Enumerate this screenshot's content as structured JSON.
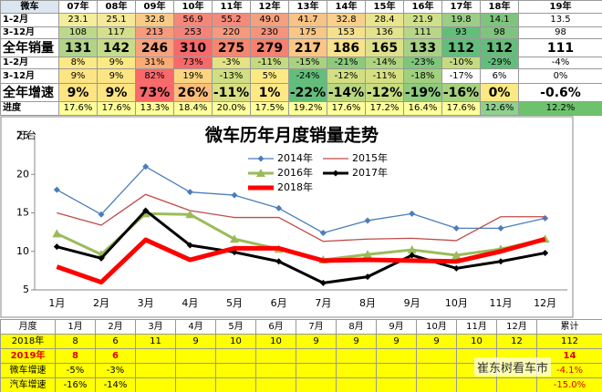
{
  "top_table": {
    "header": [
      "微车",
      "07年",
      "08年",
      "09年",
      "10年",
      "11年",
      "12年",
      "13年",
      "14年",
      "15年",
      "16年",
      "17年",
      "18年",
      "19年"
    ],
    "rows": [
      {
        "label": "1-2月",
        "cells": [
          "23.1",
          "25.1",
          "32.8",
          "56.9",
          "55.2",
          "49.0",
          "41.7",
          "32.8",
          "28.4",
          "21.9",
          "19.8",
          "14.1",
          "13.5"
        ],
        "colors": [
          "#f3ee9c",
          "#f5e999",
          "#f8cb89",
          "#f4877a",
          "#f48a7b",
          "#f5a07e",
          "#f8c386",
          "#f8d08a",
          "#e9e58e",
          "#cfe08a",
          "#9ccd86",
          "#7fc47e",
          "#ffffff"
        ]
      },
      {
        "label": "3-12月",
        "cells": [
          "108",
          "117",
          "213",
          "253",
          "220",
          "230",
          "175",
          "153",
          "136",
          "111",
          "93",
          "98",
          "98"
        ],
        "colors": [
          "#bcd98a",
          "#d3df8c",
          "#f69a7c",
          "#f4837a",
          "#f59a7d",
          "#f5937c",
          "#f8c787",
          "#f4e08d",
          "#e4e28c",
          "#b8d689",
          "#63be7b",
          "#7ec47e",
          "#ffffff"
        ]
      },
      {
        "label": "全年销量",
        "cells": [
          "131",
          "142",
          "246",
          "310",
          "275",
          "279",
          "217",
          "186",
          "165",
          "133",
          "112",
          "112",
          "111"
        ],
        "colors": [
          "#b0d488",
          "#c6dc8a",
          "#f6a27e",
          "#f8696b",
          "#f7866f",
          "#f7806e",
          "#fbc685",
          "#f7e38b",
          "#dde18a",
          "#a8d186",
          "#63be7b",
          "#63be7b",
          "#ffffff"
        ]
      },
      {
        "label": "1-2月",
        "cells": [
          "8%",
          "9%",
          "31%",
          "73%",
          "-3%",
          "-11%",
          "-15%",
          "-21%",
          "-14%",
          "-23%",
          "-10%",
          "-29%",
          "-4%"
        ],
        "colors": [
          "#fbe983",
          "#fbe983",
          "#fbab76",
          "#f8696b",
          "#e3e383",
          "#c3da80",
          "#a8d27f",
          "#8cca7d",
          "#b0d480",
          "#7fc67c",
          "#c6db81",
          "#63be7b",
          "#ffffff"
        ]
      },
      {
        "label": "3-12月",
        "cells": [
          "9%",
          "9%",
          "82%",
          "19%",
          "-13%",
          "5%",
          "-24%",
          "-12%",
          "-11%",
          "-18%",
          "-17%",
          "6%",
          "0%"
        ],
        "colors": [
          "#fde583",
          "#fde583",
          "#f8696b",
          "#fcd580",
          "#cfdf82",
          "#fde984",
          "#63be7b",
          "#d2df82",
          "#d6e082",
          "#a1d07f",
          "#ffffff",
          "#ffffff",
          "#ffffff"
        ]
      },
      {
        "label": "全年增速",
        "cells": [
          "9%",
          "9%",
          "73%",
          "26%",
          "-11%",
          "1%",
          "-22%",
          "-14%",
          "-12%",
          "-19%",
          "-16%",
          "0%",
          "-0.6%"
        ],
        "colors": [
          "#fde583",
          "#fde583",
          "#f8696b",
          "#fcbd7b",
          "#d9e082",
          "#fde984",
          "#63be7b",
          "#b9d780",
          "#c8dc81",
          "#8ecb7e",
          "#a6d27f",
          "#fbe983",
          "#ffffff"
        ]
      },
      {
        "label": "进度",
        "cells": [
          "17.6%",
          "17.6%",
          "13.3%",
          "18.4%",
          "20.0%",
          "17.5%",
          "19.2%",
          "17.6%",
          "17.2%",
          "16.4%",
          "17.6%",
          "12.6%",
          "12.2%"
        ],
        "colors": [
          "#ffff99",
          "#ffff99",
          "#ffff99",
          "#ffff99",
          "#ffff99",
          "#ffff99",
          "#ffff99",
          "#ffff99",
          "#ffff99",
          "#ffff99",
          "#ffff99",
          "#8fd08f",
          "#6cc36c"
        ]
      }
    ]
  },
  "chart_data": {
    "type": "line",
    "title": "微车历年月度销量走势",
    "y_unit": "万台",
    "categories": [
      "1月",
      "2月",
      "3月",
      "4月",
      "5月",
      "6月",
      "7月",
      "8月",
      "9月",
      "10月",
      "11月",
      "12月"
    ],
    "ylim": [
      5,
      25
    ],
    "yticks": [
      5,
      10,
      15,
      20,
      25
    ],
    "series": [
      {
        "name": "2014年",
        "color": "#4a7ebb",
        "marker": "diamond",
        "values": [
          18,
          14.8,
          21,
          17.7,
          17.3,
          15.6,
          12.4,
          14,
          14.9,
          13,
          13,
          14.3
        ]
      },
      {
        "name": "2015年",
        "color": "#be4b48",
        "values": [
          15,
          13.4,
          17.4,
          15.3,
          14.4,
          14.4,
          11.3,
          11.6,
          11.7,
          11.4,
          14.5,
          14.5
        ]
      },
      {
        "name": "2016年",
        "color": "#9bbb59",
        "marker": "triangle",
        "values": [
          12.3,
          9.6,
          14.9,
          14.8,
          11.6,
          10.3,
          8.9,
          9.6,
          10.2,
          9.5,
          10.3,
          11.6
        ]
      },
      {
        "name": "2017年",
        "color": "#000000",
        "marker": "diamond",
        "values": [
          10.6,
          9.1,
          15.3,
          10.8,
          9.9,
          8.7,
          5.9,
          6.7,
          9.5,
          7.8,
          8.7,
          9.8
        ]
      },
      {
        "name": "2018年",
        "color": "#ff0000",
        "values": [
          8,
          6,
          11.5,
          8.9,
          10.4,
          10.4,
          8.8,
          8.9,
          8.8,
          8.7,
          10,
          11.6
        ]
      }
    ]
  },
  "bottom_table": {
    "header": [
      "月度",
      "1月",
      "2月",
      "3月",
      "4月",
      "5月",
      "6月",
      "7月",
      "8月",
      "9月",
      "10月",
      "11月",
      "12月",
      "累计"
    ],
    "rows": [
      {
        "label": "2018年",
        "cells": [
          "8",
          "6",
          "11",
          "9",
          "10",
          "10",
          "9",
          "9",
          "9",
          "9",
          "10",
          "12",
          "112"
        ]
      },
      {
        "label": "2019年",
        "cells": [
          "8",
          "6",
          null,
          null,
          null,
          null,
          null,
          null,
          null,
          null,
          null,
          null,
          "14"
        ]
      },
      {
        "label": "微车增速",
        "cells": [
          "-5%",
          "-3%",
          null,
          null,
          null,
          null,
          null,
          null,
          null,
          null,
          null,
          null,
          "-4.1%"
        ]
      },
      {
        "label": "汽车增速",
        "cells": [
          "-16%",
          "-14%",
          null,
          null,
          null,
          null,
          null,
          null,
          null,
          null,
          null,
          null,
          "-15.0%"
        ]
      }
    ]
  },
  "watermark": "崔东树看车市"
}
